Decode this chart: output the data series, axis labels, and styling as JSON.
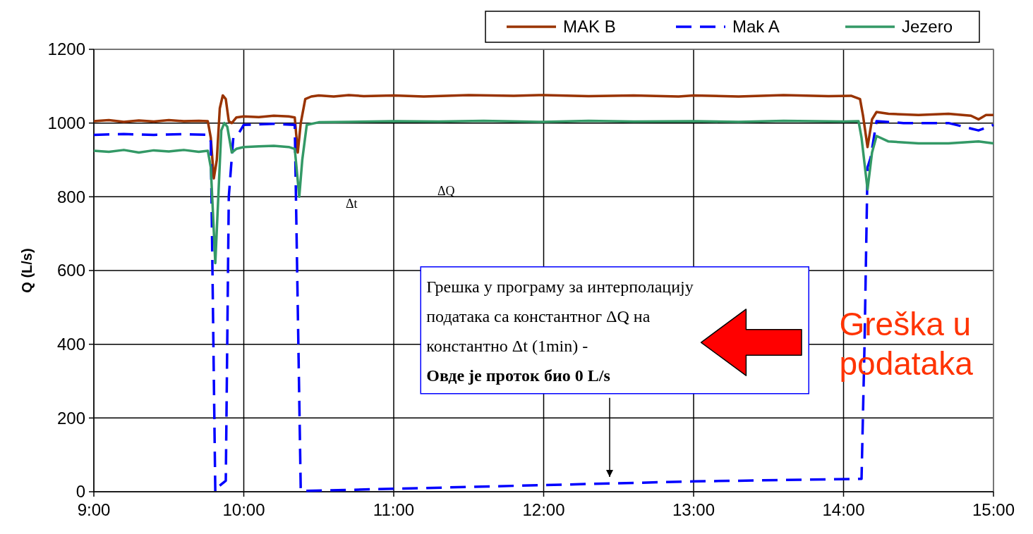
{
  "chart_data": {
    "type": "line",
    "ylabel": "Q (L/s)",
    "xlim": [
      9,
      15
    ],
    "xticks": [
      {
        "value": 9,
        "label": "9:00"
      },
      {
        "value": 10,
        "label": "10:00"
      },
      {
        "value": 11,
        "label": "11:00"
      },
      {
        "value": 12,
        "label": "12:00"
      },
      {
        "value": 13,
        "label": "13:00"
      },
      {
        "value": 14,
        "label": "14:00"
      },
      {
        "value": 15,
        "label": "15:00"
      }
    ],
    "ylim": [
      0,
      1200
    ],
    "yticks": [
      0,
      200,
      400,
      600,
      800,
      1000,
      1200
    ],
    "grid": true,
    "legend": "top right",
    "marker": "none",
    "annotations": [
      "Грешка у програму за интерполацију",
      "података са константног ΔQ на",
      "константно Δt (1min) -",
      "Овде је проток био 0 L/s",
      "Greška u podataka",
      "Δt",
      "ΔQ"
    ],
    "series": [
      {
        "name": "MAK B",
        "color": "#993300",
        "line_style": "solid",
        "x": [
          9,
          9.1,
          9.2,
          9.3,
          9.4,
          9.5,
          9.6,
          9.7,
          9.76,
          9.78,
          9.8,
          9.82,
          9.84,
          9.86,
          9.88,
          9.9,
          9.92,
          9.95,
          10,
          10.1,
          10.2,
          10.3,
          10.34,
          10.36,
          10.38,
          10.41,
          10.45,
          10.5,
          10.6,
          10.7,
          10.8,
          11,
          11.2,
          11.5,
          11.8,
          12,
          12.3,
          12.6,
          12.9,
          13,
          13.3,
          13.6,
          13.9,
          14.05,
          14.11,
          14.13,
          14.16,
          14.19,
          14.22,
          14.3,
          14.5,
          14.7,
          14.85,
          14.9,
          14.95,
          15
        ],
        "values": [
          1005,
          1008,
          1003,
          1007,
          1004,
          1008,
          1005,
          1006,
          1005,
          960,
          850,
          900,
          1040,
          1075,
          1065,
          1005,
          1000,
          1015,
          1018,
          1016,
          1020,
          1018,
          1015,
          920,
          1000,
          1065,
          1072,
          1075,
          1072,
          1076,
          1073,
          1075,
          1072,
          1076,
          1074,
          1076,
          1073,
          1075,
          1072,
          1075,
          1072,
          1076,
          1073,
          1074,
          1065,
          1020,
          935,
          1010,
          1030,
          1025,
          1022,
          1025,
          1020,
          1010,
          1022,
          1022
        ]
      },
      {
        "name": "Mak A",
        "color": "#0000ff",
        "line_style": "dashed",
        "x": [
          9,
          9.2,
          9.4,
          9.6,
          9.76,
          9.78,
          9.81,
          9.82,
          9.88,
          9.9,
          9.93,
          9.97,
          10,
          10.2,
          10.34,
          10.36,
          10.38,
          11,
          12,
          13,
          14.12,
          14.14,
          14.16,
          14.18,
          14.22,
          14.4,
          14.7,
          14.85,
          14.9,
          15
        ],
        "values": [
          968,
          970,
          968,
          970,
          968,
          950,
          0,
          10,
          30,
          800,
          960,
          975,
          995,
          998,
          995,
          500,
          2,
          8,
          18,
          28,
          35,
          400,
          880,
          905,
          1005,
          1000,
          1000,
          985,
          980,
          995
        ]
      },
      {
        "name": "Jezero",
        "color": "#339966",
        "line_style": "solid",
        "x": [
          9,
          9.1,
          9.2,
          9.3,
          9.4,
          9.5,
          9.6,
          9.7,
          9.76,
          9.78,
          9.81,
          9.83,
          9.85,
          9.87,
          9.89,
          9.92,
          9.95,
          10,
          10.1,
          10.2,
          10.3,
          10.34,
          10.37,
          10.39,
          10.42,
          10.5,
          10.7,
          11,
          11.3,
          11.6,
          12,
          12.3,
          12.6,
          13,
          13.3,
          13.6,
          14,
          14.1,
          14.12,
          14.16,
          14.19,
          14.22,
          14.3,
          14.5,
          14.7,
          14.9,
          15
        ],
        "values": [
          925,
          922,
          927,
          920,
          926,
          923,
          927,
          922,
          925,
          880,
          620,
          800,
          980,
          1000,
          990,
          920,
          930,
          935,
          937,
          938,
          935,
          930,
          800,
          900,
          995,
          1002,
          1003,
          1005,
          1004,
          1006,
          1003,
          1006,
          1004,
          1005,
          1003,
          1006,
          1004,
          1005,
          960,
          820,
          920,
          965,
          950,
          945,
          945,
          950,
          945
        ]
      }
    ]
  }
}
